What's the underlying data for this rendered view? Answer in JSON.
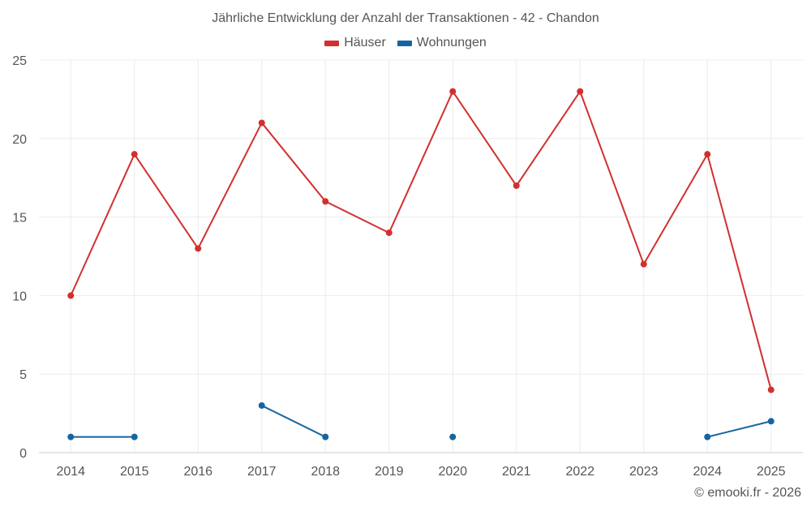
{
  "chart_data": {
    "type": "line",
    "title": "Jährliche Entwicklung der Anzahl der Transaktionen - 42 - Chandon",
    "categories": [
      "2014",
      "2015",
      "2016",
      "2017",
      "2018",
      "2019",
      "2020",
      "2021",
      "2022",
      "2023",
      "2024",
      "2025"
    ],
    "yticks": [
      "0",
      "5",
      "10",
      "15",
      "20",
      "25"
    ],
    "ylim": [
      0,
      25
    ],
    "grid": true,
    "legend_position": "top",
    "series": [
      {
        "name": "Häuser",
        "color": "#d32f2f",
        "values": [
          10,
          19,
          13,
          21,
          16,
          14,
          23,
          17,
          23,
          12,
          19,
          4
        ]
      },
      {
        "name": "Wohnungen",
        "color": "#1565a0",
        "values": [
          1,
          1,
          null,
          3,
          1,
          null,
          1,
          null,
          null,
          null,
          1,
          2
        ]
      }
    ]
  },
  "credit": "© emooki.fr - 2026"
}
